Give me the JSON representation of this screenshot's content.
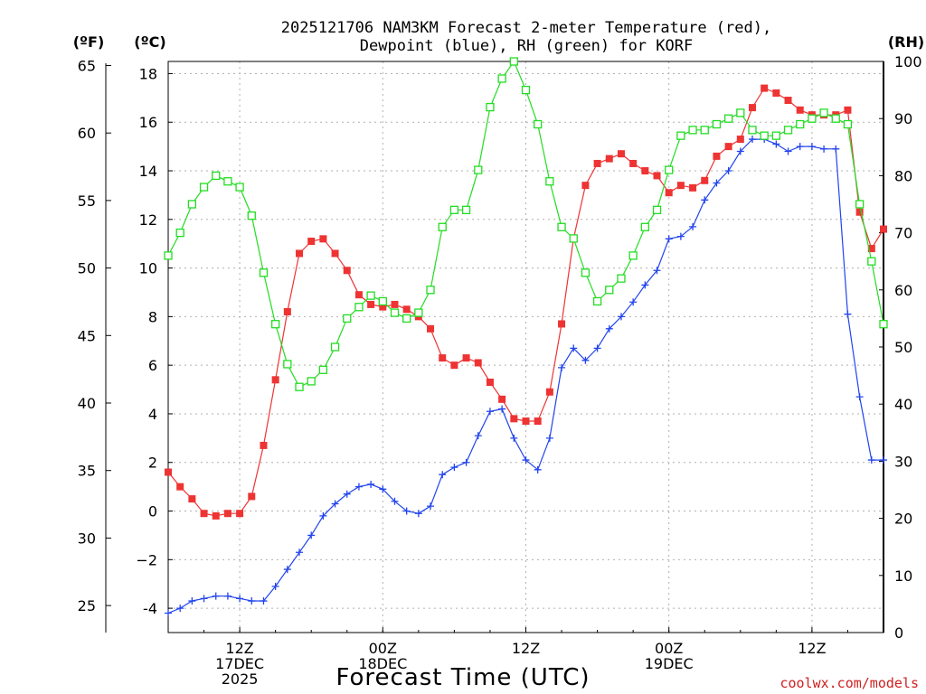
{
  "chart_data": {
    "type": "line",
    "title_lines": [
      "2025121706 NAM3KM Forecast 2-meter Temperature (red),",
      "Dewpoint (blue), RH (green) for KORF"
    ],
    "xlabel": "Forecast Time (UTC)",
    "credit": "coolwx.com/models",
    "units": {
      "fahrenheit": "(ºF)",
      "celsius": "(ºC)",
      "rh": "(RH)"
    },
    "x_unit": "forecast hour",
    "x_range": [
      0,
      60
    ],
    "ylim_celsius": [
      -5,
      18.5
    ],
    "ylim_fahrenheit": [
      23,
      65.3
    ],
    "ylim_rh": [
      0,
      100
    ],
    "celsius_ticks": [
      "-4",
      "−2",
      "0",
      "2",
      "4",
      "6",
      "8",
      "10",
      "12",
      "14",
      "16",
      "18"
    ],
    "fahrenheit_ticks": [
      "25",
      "30",
      "35",
      "40",
      "45",
      "50",
      "55",
      "60",
      "65"
    ],
    "rh_ticks": [
      "0",
      "10",
      "20",
      "30",
      "40",
      "50",
      "60",
      "70",
      "80",
      "90",
      "100"
    ],
    "x_ticks": [
      {
        "hour": 6,
        "lines": [
          "12Z",
          "17DEC",
          "2025"
        ]
      },
      {
        "hour": 18,
        "lines": [
          "00Z",
          "18DEC"
        ]
      },
      {
        "hour": 30,
        "lines": [
          "12Z",
          ""
        ]
      },
      {
        "hour": 42,
        "lines": [
          "00Z",
          "19DEC"
        ]
      },
      {
        "hour": 54,
        "lines": [
          "12Z",
          ""
        ]
      }
    ],
    "series": [
      {
        "name": "Temperature",
        "axis": "celsius",
        "color": "#ee3333",
        "marker": "filled-square",
        "x": [
          0,
          1,
          2,
          3,
          4,
          5,
          6,
          7,
          8,
          9,
          10,
          11,
          12,
          13,
          14,
          15,
          16,
          17,
          18,
          19,
          20,
          21,
          22,
          23,
          24,
          25,
          26,
          27,
          28,
          29,
          30,
          31,
          32,
          33,
          34,
          35,
          36,
          37,
          38,
          39,
          40,
          41,
          42,
          43,
          44,
          45,
          46,
          47,
          48,
          49,
          50,
          51,
          52,
          53,
          54,
          55,
          56,
          57,
          58,
          59,
          60
        ],
        "values": [
          1.6,
          1.0,
          0.5,
          -0.1,
          -0.2,
          -0.1,
          -0.1,
          0.6,
          2.7,
          5.4,
          8.2,
          10.6,
          11.1,
          11.2,
          10.6,
          9.9,
          8.9,
          8.5,
          8.4,
          8.5,
          8.3,
          8.0,
          7.5,
          6.3,
          6.0,
          6.3,
          6.1,
          5.3,
          4.6,
          3.8,
          3.7,
          3.7,
          4.9,
          7.7,
          11.2,
          13.4,
          14.3,
          14.5,
          14.7,
          14.3,
          14.0,
          13.8,
          13.1,
          13.4,
          13.3,
          13.6,
          14.6,
          15.0,
          15.3,
          16.6,
          17.4,
          17.2,
          16.9,
          16.5,
          16.3,
          16.3,
          16.3,
          16.5,
          12.3,
          10.8,
          11.6
        ]
      },
      {
        "name": "Dewpoint",
        "axis": "celsius",
        "color": "#2244ee",
        "marker": "plus",
        "x": [
          0,
          1,
          2,
          3,
          4,
          5,
          6,
          7,
          8,
          9,
          10,
          11,
          12,
          13,
          14,
          15,
          16,
          17,
          18,
          19,
          20,
          21,
          22,
          23,
          24,
          25,
          26,
          27,
          28,
          29,
          30,
          31,
          32,
          33,
          34,
          35,
          36,
          37,
          38,
          39,
          40,
          41,
          42,
          43,
          44,
          45,
          46,
          47,
          48,
          49,
          50,
          51,
          52,
          53,
          54,
          55,
          56,
          57,
          58,
          59,
          60
        ],
        "values": [
          -4.2,
          -4.0,
          -3.7,
          -3.6,
          -3.5,
          -3.5,
          -3.6,
          -3.7,
          -3.7,
          -3.1,
          -2.4,
          -1.7,
          -1.0,
          -0.2,
          0.3,
          0.7,
          1.0,
          1.1,
          0.9,
          0.4,
          0.0,
          -0.1,
          0.2,
          1.5,
          1.8,
          2.0,
          3.1,
          4.1,
          4.2,
          3.0,
          2.1,
          1.7,
          3.0,
          5.9,
          6.7,
          6.2,
          6.7,
          7.5,
          8.0,
          8.6,
          9.3,
          9.9,
          11.2,
          11.3,
          11.7,
          12.8,
          13.5,
          14.0,
          14.8,
          15.3,
          15.3,
          15.1,
          14.8,
          15.0,
          15.0,
          14.9,
          14.9,
          8.1,
          4.7,
          2.1,
          2.1
        ]
      },
      {
        "name": "RH",
        "axis": "rh",
        "color": "#22dd22",
        "marker": "open-square",
        "x": [
          0,
          1,
          2,
          3,
          4,
          5,
          6,
          7,
          8,
          9,
          10,
          11,
          12,
          13,
          14,
          15,
          16,
          17,
          18,
          19,
          20,
          21,
          22,
          23,
          24,
          25,
          26,
          27,
          28,
          29,
          30,
          31,
          32,
          33,
          34,
          35,
          36,
          37,
          38,
          39,
          40,
          41,
          42,
          43,
          44,
          45,
          46,
          47,
          48,
          49,
          50,
          51,
          52,
          53,
          54,
          55,
          56,
          57,
          58,
          59,
          60
        ],
        "values": [
          66,
          70,
          75,
          78,
          80,
          79,
          78,
          73,
          63,
          54,
          47,
          43,
          44,
          46,
          50,
          55,
          57,
          59,
          58,
          56,
          55,
          56,
          60,
          71,
          74,
          74,
          81,
          92,
          97,
          100,
          95,
          89,
          79,
          71,
          69,
          63,
          58,
          60,
          62,
          66,
          71,
          74,
          81,
          87,
          88,
          88,
          89,
          90,
          91,
          88,
          87,
          87,
          88,
          89,
          90,
          91,
          90,
          89,
          75,
          65,
          54
        ]
      }
    ]
  }
}
